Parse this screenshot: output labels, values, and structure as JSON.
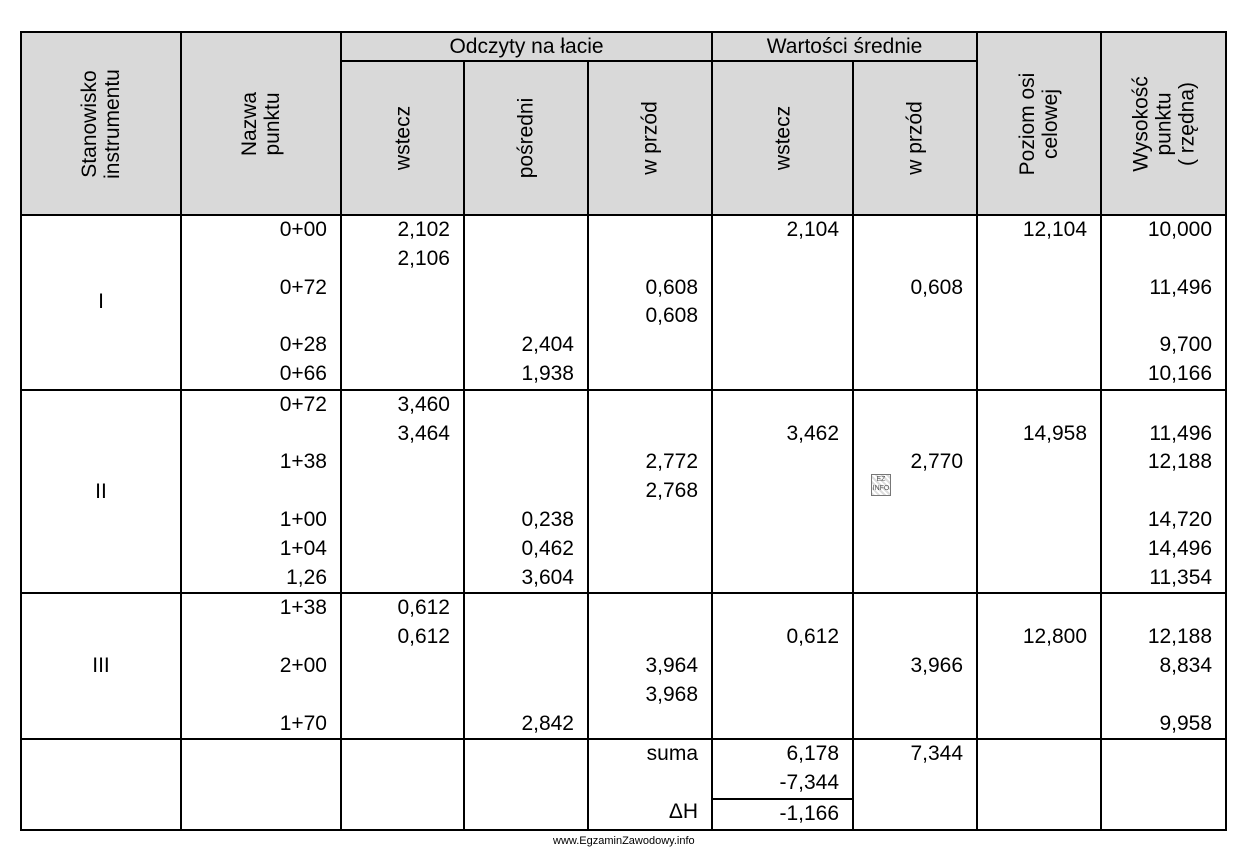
{
  "header": {
    "stanowisko": "Stanowisko\ninstrumentu",
    "nazwa": "Nazwa\npunktu",
    "odczyty": "Odczyty na łacie",
    "wartosci": "Wartości średnie",
    "odczyty_cols": [
      "wstecz",
      "pośredni",
      "w przód"
    ],
    "wartosci_cols": [
      "wstecz",
      "w przód"
    ],
    "poziom": "Poziom osi\ncelowej",
    "wysokosc": "Wysokość\npunktu\n( rzędna)"
  },
  "stations": [
    {
      "label": "I",
      "rows": [
        {
          "pt": "0+00",
          "w": "2,102",
          "p": "",
          "f": "",
          "sw": "2,104",
          "sf": "",
          "poz": "12,104",
          "h": "10,000"
        },
        {
          "pt": "",
          "w": "2,106",
          "p": "",
          "f": "",
          "sw": "",
          "sf": "",
          "poz": "",
          "h": ""
        },
        {
          "pt": "0+72",
          "w": "",
          "p": "",
          "f": "0,608",
          "sw": "",
          "sf": "0,608",
          "poz": "",
          "h": "11,496"
        },
        {
          "pt": "",
          "w": "",
          "p": "",
          "f": "0,608",
          "sw": "",
          "sf": "",
          "poz": "",
          "h": ""
        },
        {
          "pt": "0+28",
          "w": "",
          "p": "2,404",
          "f": "",
          "sw": "",
          "sf": "",
          "poz": "",
          "h": "9,700"
        },
        {
          "pt": "0+66",
          "w": "",
          "p": "1,938",
          "f": "",
          "sw": "",
          "sf": "",
          "poz": "",
          "h": "10,166"
        }
      ]
    },
    {
      "label": "II",
      "rows": [
        {
          "pt": "0+72",
          "w": "3,460",
          "p": "",
          "f": "",
          "sw": "",
          "sf": "",
          "poz": "",
          "h": ""
        },
        {
          "pt": "",
          "w": "3,464",
          "p": "",
          "f": "",
          "sw": "3,462",
          "sf": "",
          "poz": "14,958",
          "h": "11,496"
        },
        {
          "pt": "1+38",
          "w": "",
          "p": "",
          "f": "2,772",
          "sw": "",
          "sf": "2,770",
          "poz": "",
          "h": "12,188"
        },
        {
          "pt": "",
          "w": "",
          "p": "",
          "f": "2,768",
          "sw": "",
          "sf": "",
          "poz": "",
          "h": ""
        },
        {
          "pt": "1+00",
          "w": "",
          "p": "0,238",
          "f": "",
          "sw": "",
          "sf": "",
          "poz": "",
          "h": "14,720"
        },
        {
          "pt": "1+04",
          "w": "",
          "p": "0,462",
          "f": "",
          "sw": "",
          "sf": "",
          "poz": "",
          "h": "14,496"
        },
        {
          "pt": "1,26",
          "w": "",
          "p": "3,604",
          "f": "",
          "sw": "",
          "sf": "",
          "poz": "",
          "h": "11,354"
        }
      ]
    },
    {
      "label": "III",
      "rows": [
        {
          "pt": "1+38",
          "w": "0,612",
          "p": "",
          "f": "",
          "sw": "",
          "sf": "",
          "poz": "",
          "h": ""
        },
        {
          "pt": "",
          "w": "0,612",
          "p": "",
          "f": "",
          "sw": "0,612",
          "sf": "",
          "poz": "12,800",
          "h": "12,188"
        },
        {
          "pt": "2+00",
          "w": "",
          "p": "",
          "f": "3,964",
          "sw": "",
          "sf": "3,966",
          "poz": "",
          "h": "8,834"
        },
        {
          "pt": "",
          "w": "",
          "p": "",
          "f": "3,968",
          "sw": "",
          "sf": "",
          "poz": "",
          "h": ""
        },
        {
          "pt": "1+70",
          "w": "",
          "p": "2,842",
          "f": "",
          "sw": "",
          "sf": "",
          "poz": "",
          "h": "9,958"
        }
      ]
    }
  ],
  "summary": {
    "suma_label": "suma",
    "dh_label": "ΔH",
    "sum_wstecz": "6,178",
    "sum_minus": "-7,344",
    "dh_value": "-1,166",
    "sum_wprzod": "7,344"
  },
  "watermark": "www.EgzaminZawodowy.info",
  "stamp": "EZ\nINFO"
}
